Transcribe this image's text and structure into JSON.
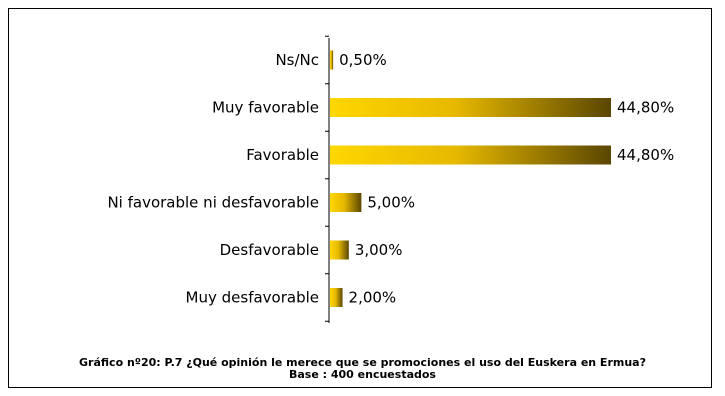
{
  "caption": {
    "line1": "Gráfico nº20:  P.7 ¿Qué opinión le merece que se promociones el uso del Euskera en Ermua?",
    "line2": "Base : 400 encuestados"
  },
  "colors": {
    "bar_light": "#ffd700",
    "bar_mid": "#e6b800",
    "bar_dark": "#5a4600"
  },
  "chart_data": {
    "type": "bar",
    "orientation": "horizontal",
    "categories": [
      "Ns/Nc",
      "Muy favorable",
      "Favorable",
      "Ni favorable ni desfavorable",
      "Desfavorable",
      "Muy desfavorable"
    ],
    "values": [
      0.5,
      44.8,
      44.8,
      5.0,
      3.0,
      2.0
    ],
    "value_labels": [
      "0,50%",
      "44,80%",
      "44,80%",
      "5,00%",
      "3,00%",
      "2,00%"
    ],
    "unit": "%",
    "grid": false,
    "legend": "none"
  }
}
